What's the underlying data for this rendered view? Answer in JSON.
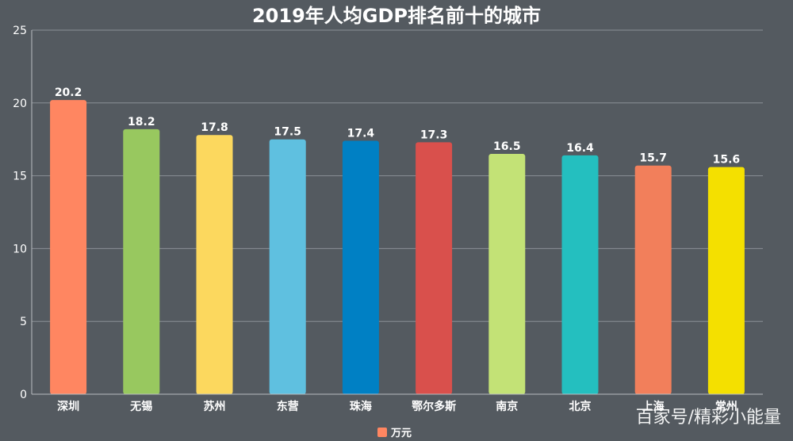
{
  "chart_data": {
    "type": "bar",
    "title": "2019年人均GDP排名前十的城市",
    "categories": [
      "深圳",
      "无锡",
      "苏州",
      "东营",
      "珠海",
      "鄂尔多斯",
      "南京",
      "北京",
      "上海",
      "常州"
    ],
    "values": [
      20.2,
      18.2,
      17.8,
      17.5,
      17.4,
      17.3,
      16.5,
      16.4,
      15.7,
      15.6
    ],
    "data_labels": [
      "20.2",
      "18.2",
      "17.8",
      "17.5",
      "17.4",
      "17.3",
      "16.5",
      "16.4",
      "15.7",
      "15.6"
    ],
    "bar_colors": [
      "#ff8661",
      "#98c85f",
      "#fcd85e",
      "#5fc0e0",
      "#0080c4",
      "#d9504c",
      "#c3e276",
      "#24bfbf",
      "#f27f5b",
      "#f4e000"
    ],
    "ylim": [
      0,
      25
    ],
    "yticks": [
      0,
      5,
      10,
      15,
      20,
      25
    ],
    "ytick_labels": [
      "0",
      "5",
      "10",
      "15",
      "20",
      "25"
    ],
    "grid": true,
    "legend": {
      "position": "bottom-center",
      "entries": [
        {
          "name": "万元",
          "color": "#ff8661"
        }
      ]
    }
  },
  "watermark": "百家号/精彩小能量"
}
